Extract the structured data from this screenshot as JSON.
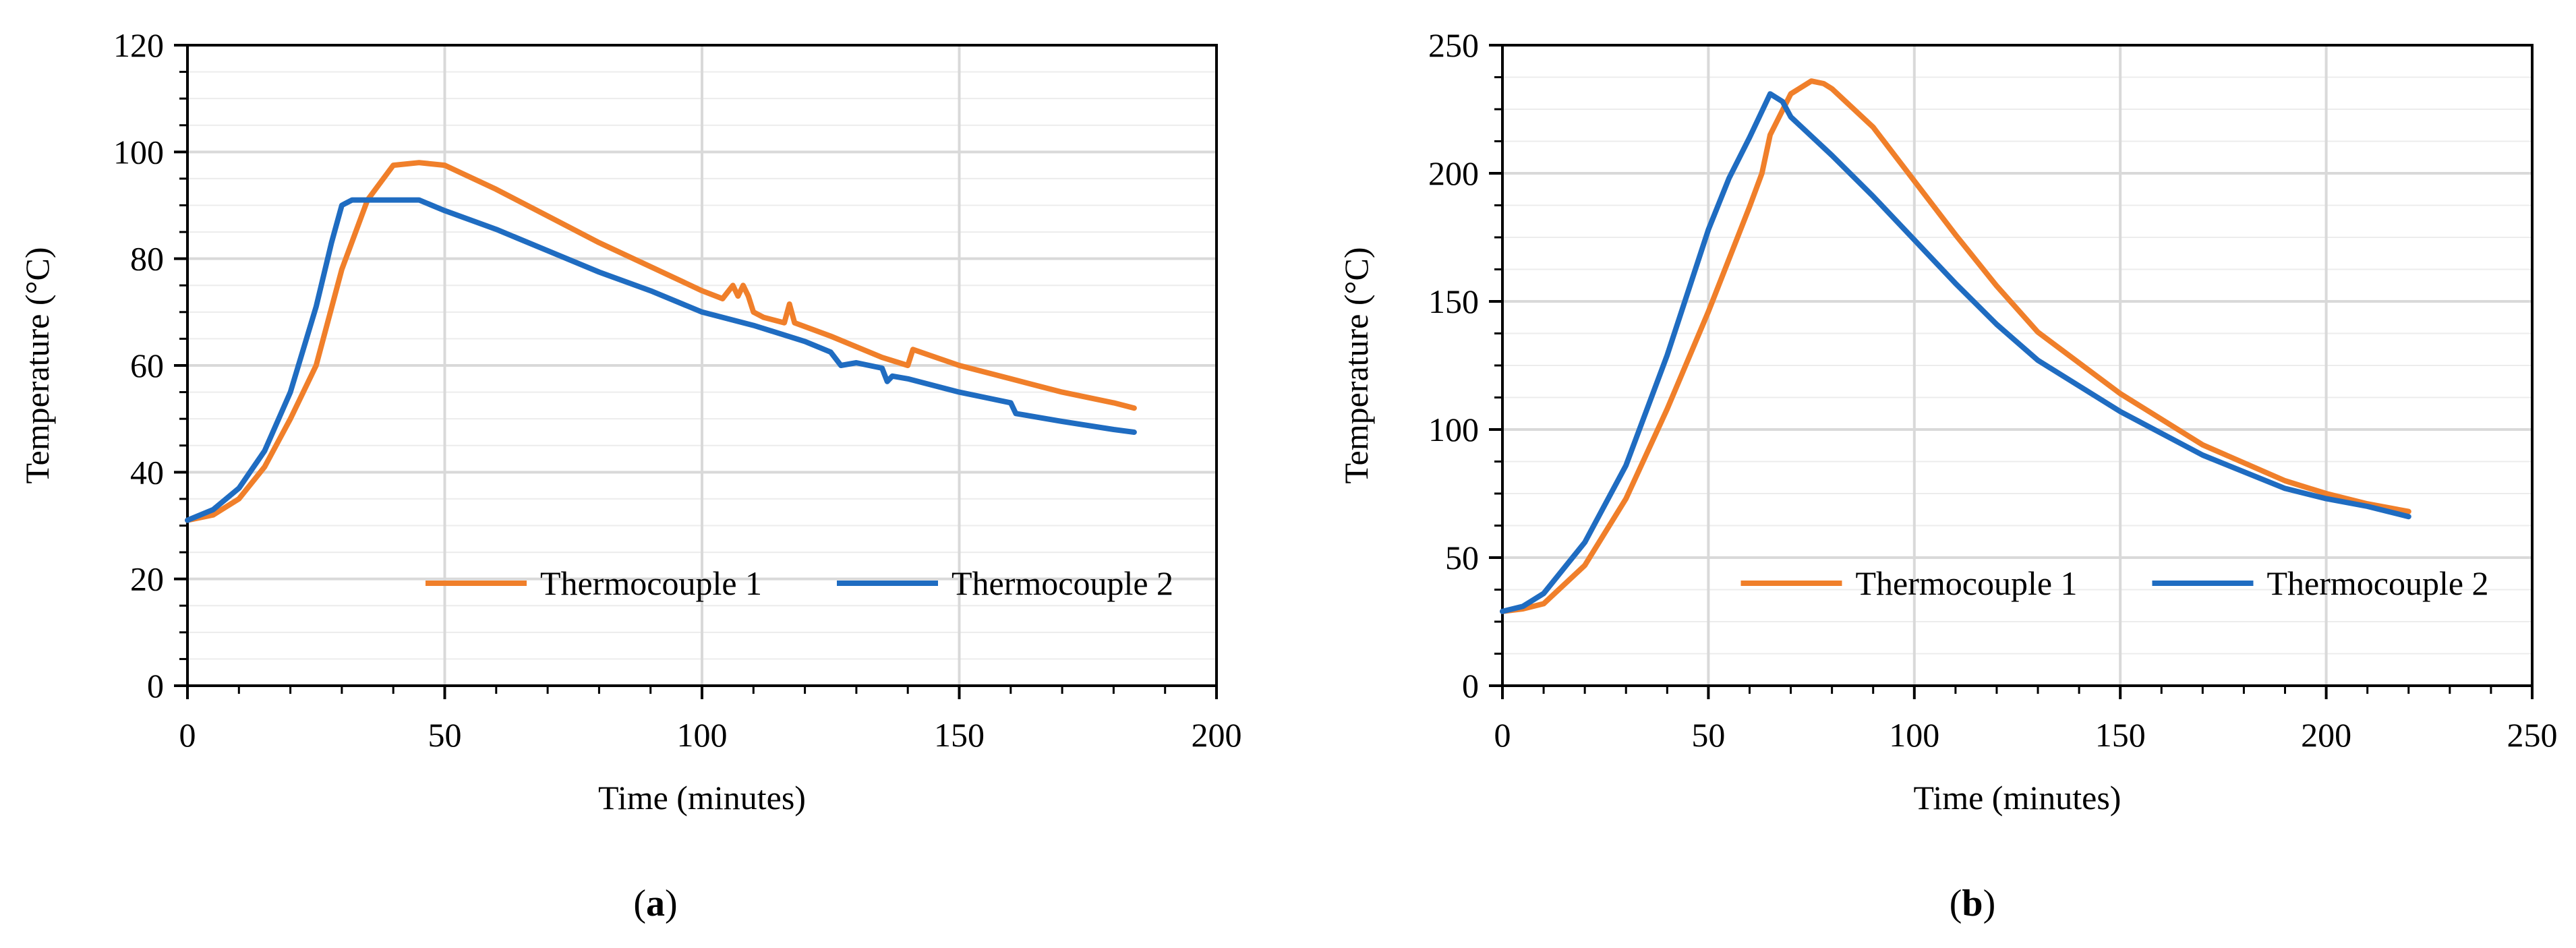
{
  "colors": {
    "thermocouple_1": "#f07f2a",
    "thermocouple_2": "#1f6cc1",
    "grid": "#d9d9d9",
    "minor_grid": "#ececec",
    "axis": "#000000"
  },
  "chart_data": [
    {
      "type": "line",
      "panel_label": "a",
      "xlabel": "Time (minutes)",
      "ylabel": "Temperature (°C)",
      "xlim": [
        0,
        200
      ],
      "ylim": [
        0,
        120
      ],
      "x_ticks": [
        0,
        50,
        100,
        150,
        200
      ],
      "y_ticks": [
        0,
        20,
        40,
        60,
        80,
        100,
        120
      ],
      "x_tick_labels": [
        "0",
        "50",
        "100",
        "150",
        "200"
      ],
      "y_tick_labels": [
        "0",
        "20",
        "40",
        "60",
        "80",
        "100",
        "120"
      ],
      "grid": true,
      "legend_position": "center-bottom",
      "series": [
        {
          "name": "Thermocouple 1",
          "color": "#f07f2a",
          "x": [
            0,
            5,
            10,
            15,
            20,
            25,
            30,
            35,
            40,
            45,
            50,
            60,
            70,
            80,
            90,
            100,
            104,
            106,
            107,
            108,
            109,
            110,
            112,
            116,
            117,
            118,
            125,
            135,
            140,
            141,
            150,
            160,
            170,
            180,
            184
          ],
          "y": [
            31,
            32,
            35,
            41,
            50,
            60,
            78,
            91,
            97.5,
            98,
            97.5,
            93,
            88,
            83,
            78.5,
            74,
            72.5,
            75,
            73,
            75,
            73,
            70,
            69,
            68,
            71.5,
            68,
            65.5,
            61.5,
            60,
            63,
            60,
            57.5,
            55,
            53,
            52
          ]
        },
        {
          "name": "Thermocouple 2",
          "color": "#1f6cc1",
          "x": [
            0,
            5,
            10,
            15,
            20,
            25,
            28,
            30,
            32,
            40,
            45,
            50,
            60,
            70,
            80,
            90,
            100,
            110,
            120,
            125,
            127,
            130,
            135,
            136,
            137,
            140,
            150,
            155,
            160,
            161,
            170,
            180,
            184
          ],
          "y": [
            31,
            33,
            37,
            44,
            55,
            71,
            83,
            90,
            91,
            91,
            91,
            89,
            85.5,
            81.5,
            77.5,
            74,
            70,
            67.5,
            64.5,
            62.5,
            60,
            60.5,
            59.5,
            57,
            58,
            57.5,
            55,
            54,
            53,
            51,
            49.5,
            48,
            47.5
          ]
        }
      ]
    },
    {
      "type": "line",
      "panel_label": "b",
      "xlabel": "Time (minutes)",
      "ylabel": "Temperature (°C)",
      "xlim": [
        0,
        250
      ],
      "ylim": [
        0,
        250
      ],
      "x_ticks": [
        0,
        50,
        100,
        150,
        200,
        250
      ],
      "y_ticks": [
        0,
        50,
        100,
        150,
        200,
        250
      ],
      "x_tick_labels": [
        "0",
        "50",
        "100",
        "150",
        "200",
        "250"
      ],
      "y_tick_labels": [
        "0",
        "50",
        "100",
        "150",
        "200",
        "250"
      ],
      "grid": true,
      "legend_position": "center-bottom",
      "series": [
        {
          "name": "Thermocouple 1",
          "color": "#f07f2a",
          "x": [
            0,
            5,
            10,
            20,
            30,
            40,
            50,
            60,
            63,
            65,
            70,
            75,
            78,
            80,
            90,
            100,
            110,
            120,
            130,
            150,
            170,
            190,
            200,
            210,
            220
          ],
          "y": [
            29,
            30,
            32,
            47,
            73,
            108,
            146,
            187,
            200,
            215,
            231,
            236,
            235,
            233,
            218,
            197,
            176,
            156,
            138,
            114,
            94,
            80,
            75,
            71,
            68
          ]
        },
        {
          "name": "Thermocouple 2",
          "color": "#1f6cc1",
          "x": [
            0,
            5,
            10,
            20,
            30,
            40,
            50,
            55,
            60,
            65,
            68,
            70,
            80,
            90,
            100,
            110,
            120,
            130,
            150,
            170,
            190,
            200,
            210,
            220
          ],
          "y": [
            29,
            31,
            36,
            56,
            86,
            129,
            178,
            198,
            214,
            231,
            228,
            222,
            207,
            191,
            174,
            157,
            141,
            127,
            107,
            90,
            77,
            73,
            70,
            66
          ]
        }
      ]
    }
  ]
}
